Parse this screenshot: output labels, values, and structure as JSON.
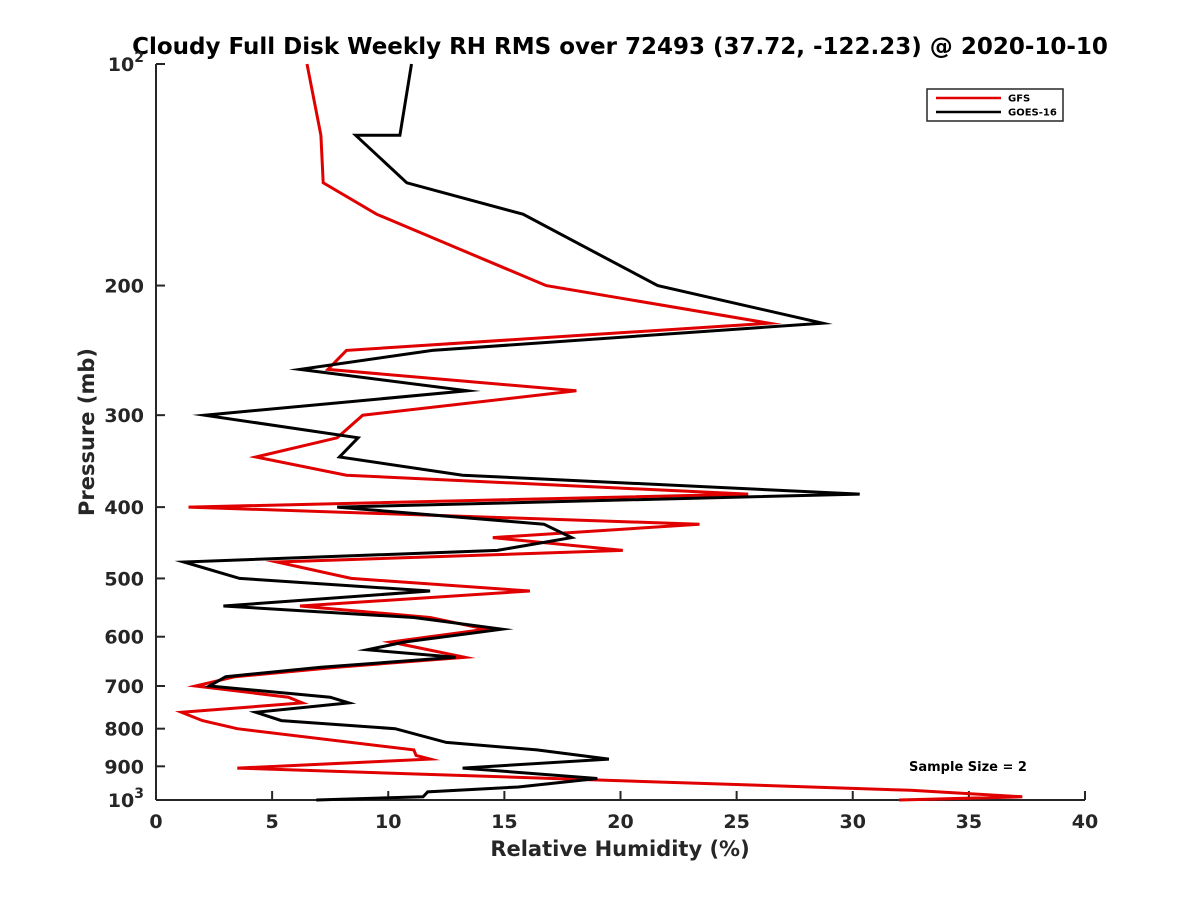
{
  "chart_data": {
    "type": "line",
    "title": "Cloudy Full Disk Weekly RH RMS over 72493 (37.72, -122.23) @ 2020-10-10",
    "xlabel": "Relative Humidity (%)",
    "ylabel": "Pressure (mb)",
    "xlim": [
      0,
      40
    ],
    "ylim": [
      100,
      1000
    ],
    "yscale": "log",
    "y_reversed": true,
    "grid": false,
    "legend_position": "top-right",
    "x_ticks": [
      {
        "value": 0,
        "label": "0"
      },
      {
        "value": 5,
        "label": "5"
      },
      {
        "value": 10,
        "label": "10"
      },
      {
        "value": 15,
        "label": "15"
      },
      {
        "value": 20,
        "label": "20"
      },
      {
        "value": 25,
        "label": "25"
      },
      {
        "value": 30,
        "label": "30"
      },
      {
        "value": 35,
        "label": "35"
      },
      {
        "value": 40,
        "label": "40"
      }
    ],
    "y_ticks": [
      {
        "value": 100,
        "label": "10",
        "sup": "2"
      },
      {
        "value": 200,
        "label": "200",
        "sup": ""
      },
      {
        "value": 300,
        "label": "300",
        "sup": ""
      },
      {
        "value": 400,
        "label": "400",
        "sup": ""
      },
      {
        "value": 500,
        "label": "500",
        "sup": ""
      },
      {
        "value": 600,
        "label": "600",
        "sup": ""
      },
      {
        "value": 700,
        "label": "700",
        "sup": ""
      },
      {
        "value": 800,
        "label": "800",
        "sup": ""
      },
      {
        "value": 900,
        "label": "900",
        "sup": ""
      },
      {
        "value": 1000,
        "label": "10",
        "sup": "3"
      }
    ],
    "series": [
      {
        "name": "GFS",
        "color": "#e00000",
        "x": [
          6.5,
          7.1,
          7.1,
          7.2,
          9.5,
          16.8,
          26.4,
          8.2,
          7.4,
          18.1,
          8.9,
          7.8,
          4.3,
          8.2,
          25.5,
          1.4,
          23.4,
          14.5,
          20.1,
          5.2,
          8.4,
          16.1,
          6.2,
          11.8,
          14.2,
          10.1,
          13.3,
          7.8,
          3.4,
          1.7,
          5.7,
          6.3,
          1.1,
          2.0,
          3.5,
          11.1,
          11.2,
          11.8,
          3.5,
          32.5,
          37.3,
          32.0
        ],
        "y": [
          100,
          125,
          125,
          145,
          160,
          200,
          225,
          245,
          260,
          278,
          300,
          322,
          342,
          362,
          384,
          400,
          422,
          440,
          458,
          475,
          500,
          520,
          545,
          565,
          586,
          610,
          640,
          660,
          680,
          700,
          725,
          738,
          760,
          780,
          800,
          855,
          870,
          880,
          905,
          970,
          990,
          1000
        ]
      },
      {
        "name": "GOES-16",
        "color": "#000000",
        "x": [
          11.0,
          10.5,
          8.6,
          10.8,
          15.8,
          21.6,
          28.7,
          11.9,
          6.2,
          13.4,
          2.1,
          8.7,
          7.9,
          13.2,
          30.3,
          7.8,
          16.7,
          17.9,
          14.7,
          1.2,
          3.6,
          11.8,
          2.9,
          11.1,
          14.9,
          10.7,
          9.1,
          12.9,
          7.1,
          3.0,
          2.3,
          7.5,
          8.3,
          4.3,
          5.4,
          10.3,
          12.5,
          16.4,
          19.5,
          13.2,
          19.0,
          15.6,
          11.7,
          11.5,
          6.9
        ],
        "y": [
          100,
          125,
          125,
          145,
          160,
          200,
          225,
          245,
          260,
          278,
          300,
          322,
          342,
          362,
          384,
          400,
          422,
          440,
          458,
          475,
          500,
          520,
          545,
          565,
          586,
          610,
          625,
          640,
          660,
          680,
          700,
          725,
          738,
          760,
          780,
          800,
          835,
          855,
          880,
          905,
          935,
          960,
          975,
          990,
          1000
        ]
      }
    ],
    "annotations": [
      {
        "text": "Sample Size = 2"
      }
    ]
  }
}
